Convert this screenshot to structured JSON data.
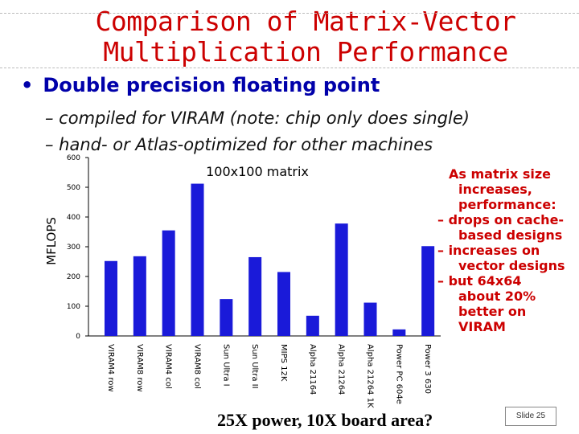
{
  "slide": {
    "title_line1": "Comparison of Matrix-Vector",
    "title_line2": "Multiplication Performance",
    "bullet": "Double precision floating point",
    "sub1": "– compiled for VIRAM (note: chip only does single)",
    "sub2": "– hand- or Atlas-optimized for other machines",
    "note_lines": [
      "As matrix size",
      "increases,",
      "performance:",
      "– drops on cache-",
      "based designs",
      "– increases on",
      "vector designs",
      "– but 64x64",
      "about 20%",
      "better on",
      "VIRAM"
    ],
    "footer": "25X power, 10X board area?",
    "slide_number": "Slide 25"
  },
  "chart_data": {
    "type": "bar",
    "title": "100x100 matrix",
    "ylabel": "MFLOPS",
    "xlabel": "",
    "ylim": [
      0,
      600
    ],
    "yticks": [
      0,
      100,
      200,
      300,
      400,
      500,
      600
    ],
    "grid": false,
    "categories": [
      "VIRAM4 row",
      "VIRAM8 row",
      "VIRAM4 col",
      "VIRAM8 col",
      "Sun Ultra I",
      "Sun Ultra II",
      "MIPS 12K",
      "Alpha 21164",
      "Alpha 21264",
      "Alpha 21264 1K",
      "Power PC 604e",
      "Power 3 630"
    ],
    "values": [
      252,
      268,
      355,
      512,
      124,
      265,
      215,
      68,
      378,
      112,
      22,
      302
    ],
    "colors": {
      "bar": "#1a1ad9",
      "axis": "#000000"
    }
  }
}
